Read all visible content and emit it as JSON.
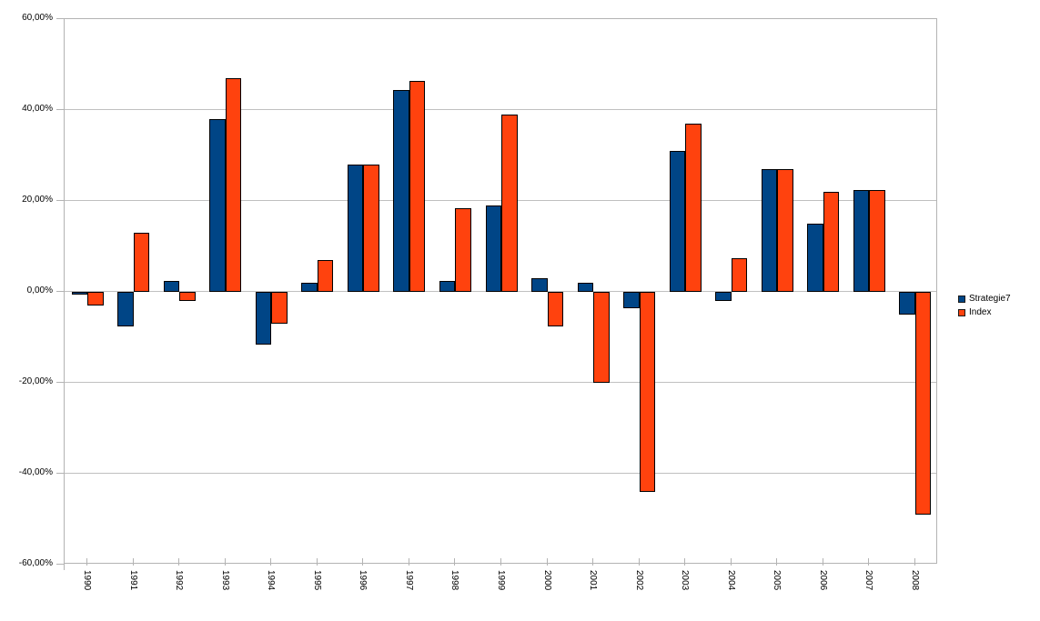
{
  "chart_data": {
    "type": "bar",
    "title": "",
    "xlabel": "",
    "ylabel": "",
    "categories": [
      "1990",
      "1991",
      "1992",
      "1993",
      "1994",
      "1995",
      "1996",
      "1997",
      "1998",
      "1999",
      "2000",
      "2001",
      "2002",
      "2003",
      "2004",
      "2005",
      "2006",
      "2007",
      "2008"
    ],
    "series": [
      {
        "name": "Strategie7",
        "color": "#004586",
        "values": [
          -0.5,
          -7.5,
          2.5,
          38,
          -11.5,
          2,
          28,
          44.5,
          2.5,
          19,
          3,
          2,
          -3.5,
          31,
          -2,
          27,
          15,
          22.5,
          -5
        ]
      },
      {
        "name": "Index",
        "color": "#FF420E",
        "values": [
          -3,
          13,
          -2,
          47,
          -7,
          7,
          28,
          46.5,
          18.5,
          39,
          -7.5,
          -20,
          -44,
          37,
          7.5,
          27,
          22,
          22.5,
          -49
        ]
      }
    ],
    "ylim": [
      -60,
      60
    ],
    "grid": true,
    "legend_position": "right",
    "y_ticks": [
      {
        "value": 60,
        "label": "60,00%"
      },
      {
        "value": 40,
        "label": "40,00%"
      },
      {
        "value": 20,
        "label": "20,00%"
      },
      {
        "value": 0,
        "label": "0,00%"
      },
      {
        "value": -20,
        "label": "-20,00%"
      },
      {
        "value": -40,
        "label": "-40,00%"
      },
      {
        "value": -60,
        "label": "-60,00%"
      }
    ]
  },
  "colors": {
    "background": "#ffffff",
    "axis": "#b3b3b3",
    "gridline": "#c0c0c0",
    "bar_border": "#000000",
    "text": "#000000"
  }
}
